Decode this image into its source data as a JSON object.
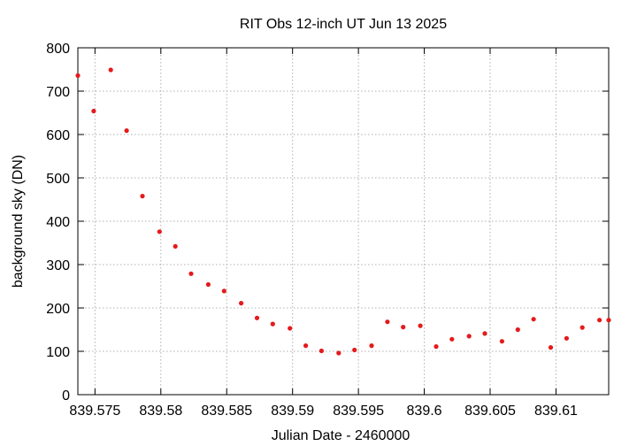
{
  "chart_data": {
    "type": "scatter",
    "title": "RIT Obs 12-inch UT Jun 13 2025",
    "xlabel": "Julian Date - 2460000",
    "ylabel": "background sky (DN)",
    "xlim": [
      839.5737,
      839.614
    ],
    "ylim": [
      0,
      800
    ],
    "x_ticks": [
      839.575,
      839.58,
      839.585,
      839.59,
      839.595,
      839.6,
      839.605,
      839.61
    ],
    "x_tick_labels": [
      "839.575",
      "839.58",
      "839.585",
      "839.59",
      "839.595",
      "839.6",
      "839.605",
      "839.61"
    ],
    "y_ticks": [
      0,
      100,
      200,
      300,
      400,
      500,
      600,
      700,
      800
    ],
    "y_tick_labels": [
      "0",
      "100",
      "200",
      "300",
      "400",
      "500",
      "600",
      "700",
      "800"
    ],
    "grid": true,
    "point_color": "#e41a1c",
    "series": [
      {
        "x": [
          839.5737,
          839.5749,
          839.5762,
          839.5774,
          839.5786,
          839.5799,
          839.5811,
          839.5823,
          839.5836,
          839.5848,
          839.5861,
          839.5873,
          839.5885,
          839.5898,
          839.591,
          839.5922,
          839.5935,
          839.5947,
          839.596,
          839.5972,
          839.5984,
          839.5997,
          839.6009,
          839.6021,
          839.6034,
          839.6046,
          839.6059,
          839.6071,
          839.6083,
          839.6096,
          839.6108,
          839.612,
          839.6133,
          839.614
        ],
        "y": [
          736,
          654,
          749,
          609,
          458,
          376,
          342,
          279,
          254,
          239,
          211,
          177,
          163,
          153,
          113,
          101,
          96,
          103,
          113,
          168,
          156,
          159,
          111,
          128,
          135,
          141,
          123,
          150,
          174,
          109,
          130,
          155,
          172,
          172
        ]
      }
    ]
  }
}
